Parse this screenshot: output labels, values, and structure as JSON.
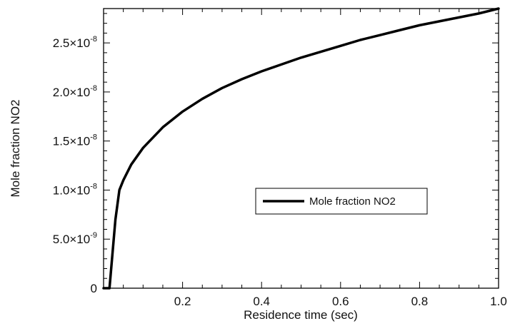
{
  "chart_data": {
    "type": "line",
    "xlabel": "Residence time (sec)",
    "ylabel": "Mole fraction NO2",
    "xlim": [
      0.0,
      1.0
    ],
    "ylim": [
      0,
      2.85e-08
    ],
    "x_ticks": [
      {
        "value": 0.2,
        "label": "0.2"
      },
      {
        "value": 0.4,
        "label": "0.4"
      },
      {
        "value": 0.6,
        "label": "0.6"
      },
      {
        "value": 0.8,
        "label": "0.8"
      },
      {
        "value": 1.0,
        "label": "1.0"
      }
    ],
    "y_ticks": [
      {
        "value": 0,
        "mantissa": "0",
        "exponent": ""
      },
      {
        "value": 5e-09,
        "mantissa": "5.0×10",
        "exponent": "-9"
      },
      {
        "value": 1e-08,
        "mantissa": "1.0×10",
        "exponent": "-8"
      },
      {
        "value": 1.5e-08,
        "mantissa": "1.5×10",
        "exponent": "-8"
      },
      {
        "value": 2e-08,
        "mantissa": "2.0×10",
        "exponent": "-8"
      },
      {
        "value": 2.5e-08,
        "mantissa": "2.5×10",
        "exponent": "-8"
      }
    ],
    "legend": {
      "position": "center-right"
    },
    "series": [
      {
        "name": "Mole fraction NO2",
        "color": "#000000",
        "x": [
          0.0,
          0.01,
          0.015,
          0.03,
          0.04,
          0.05,
          0.07,
          0.1,
          0.15,
          0.2,
          0.25,
          0.3,
          0.35,
          0.4,
          0.45,
          0.5,
          0.55,
          0.6,
          0.65,
          0.7,
          0.75,
          0.8,
          0.85,
          0.9,
          0.95,
          1.0
        ],
        "y": [
          0,
          0,
          0,
          7e-09,
          1e-08,
          1.1e-08,
          1.26e-08,
          1.43e-08,
          1.64e-08,
          1.8e-08,
          1.93e-08,
          2.04e-08,
          2.13e-08,
          2.21e-08,
          2.28e-08,
          2.35e-08,
          2.41e-08,
          2.47e-08,
          2.53e-08,
          2.58e-08,
          2.63e-08,
          2.68e-08,
          2.72e-08,
          2.76e-08,
          2.8e-08,
          2.85e-08
        ]
      }
    ]
  }
}
